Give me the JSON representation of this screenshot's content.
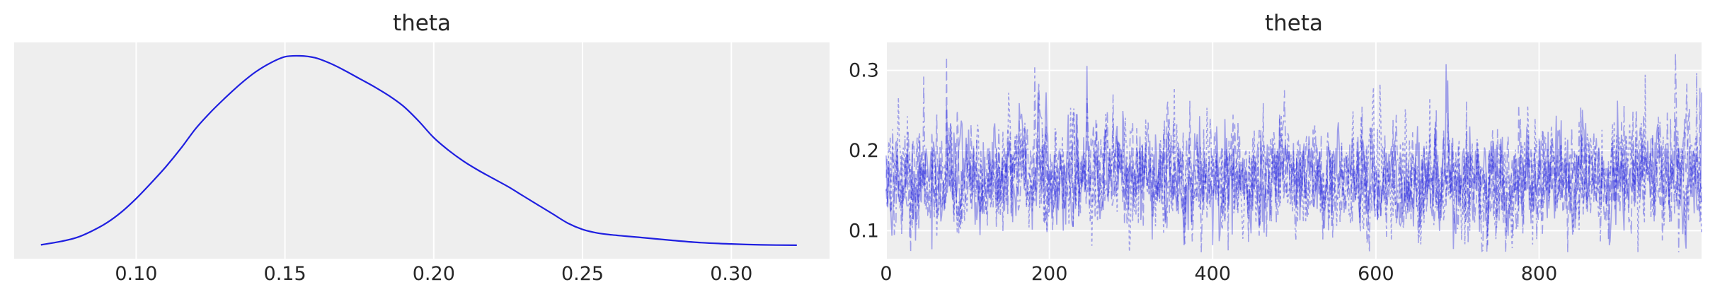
{
  "chart_data": [
    {
      "type": "line",
      "title": "theta",
      "xlabel": "",
      "ylabel": "",
      "xlim": [
        0.059,
        0.333
      ],
      "x_ticks": [
        "0.10",
        "0.15",
        "0.20",
        "0.25",
        "0.30"
      ],
      "y_ticks": [],
      "grid": true,
      "background": "#eeeeee",
      "series": [
        {
          "color": "#1f1fe0",
          "x": [
            0.068,
            0.075,
            0.08,
            0.085,
            0.09,
            0.095,
            0.1,
            0.105,
            0.11,
            0.115,
            0.12,
            0.125,
            0.13,
            0.135,
            0.14,
            0.145,
            0.15,
            0.155,
            0.16,
            0.165,
            0.17,
            0.175,
            0.18,
            0.185,
            0.19,
            0.195,
            0.2,
            0.205,
            0.21,
            0.215,
            0.22,
            0.225,
            0.23,
            0.235,
            0.24,
            0.245,
            0.25,
            0.255,
            0.26,
            0.27,
            0.28,
            0.29,
            0.3,
            0.31,
            0.322
          ],
          "y": [
            0.1,
            0.3,
            0.5,
            0.85,
            1.3,
            1.9,
            2.65,
            3.5,
            4.4,
            5.4,
            6.5,
            7.4,
            8.2,
            8.95,
            9.6,
            10.1,
            10.45,
            10.5,
            10.4,
            10.1,
            9.7,
            9.25,
            8.8,
            8.3,
            7.7,
            6.9,
            6.0,
            5.3,
            4.7,
            4.2,
            3.75,
            3.3,
            2.8,
            2.3,
            1.8,
            1.3,
            0.95,
            0.75,
            0.65,
            0.5,
            0.35,
            0.22,
            0.15,
            0.1,
            0.08
          ]
        }
      ]
    },
    {
      "type": "line",
      "title": "theta",
      "xlabel": "",
      "ylabel": "",
      "xlim": [
        0,
        999
      ],
      "ylim": [
        0.065,
        0.335
      ],
      "x_ticks": [
        "0",
        "200",
        "400",
        "600",
        "800"
      ],
      "y_ticks": [
        "0.1",
        "0.2",
        "0.3"
      ],
      "grid": true,
      "background": "#eeeeee",
      "series_count": 4,
      "draws_per_chain": 1000,
      "mean": 0.165,
      "sd": 0.033,
      "min": 0.073,
      "max": 0.322,
      "color": "#1f1fe0"
    }
  ]
}
